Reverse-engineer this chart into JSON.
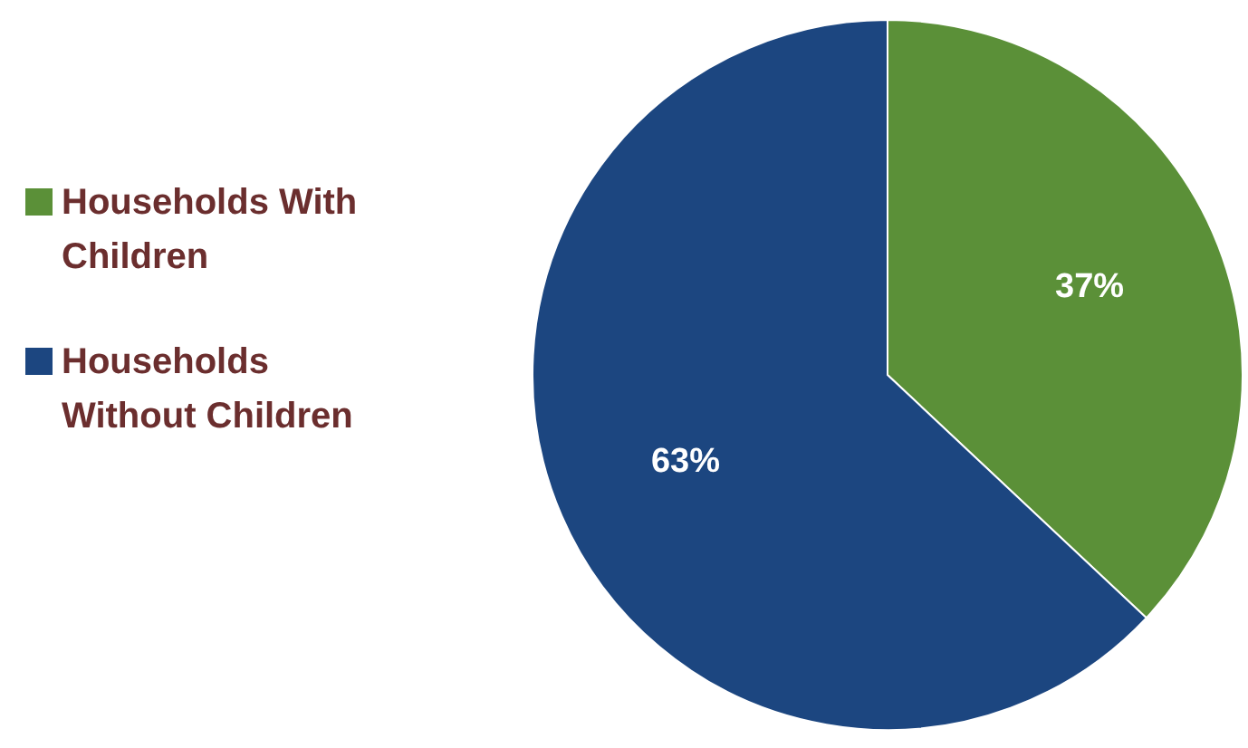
{
  "chart_data": {
    "type": "pie",
    "categories": [
      "Households With Children",
      "Households Without Children"
    ],
    "values": [
      37,
      63
    ],
    "colors": [
      "#5b9038",
      "#1c4680"
    ],
    "value_labels": [
      "37%",
      "63%"
    ],
    "legend": "left"
  }
}
